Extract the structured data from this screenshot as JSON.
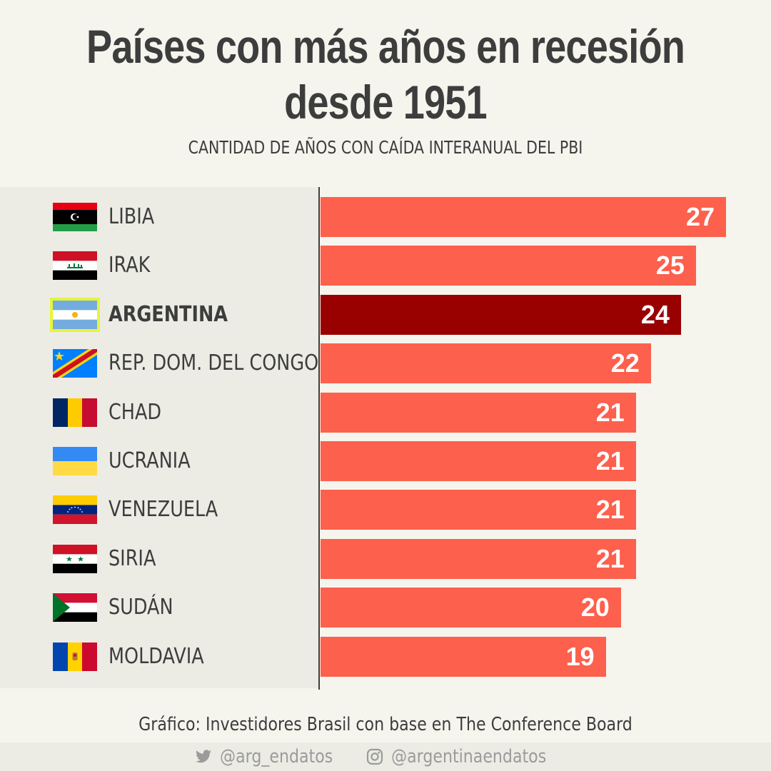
{
  "title_line1": "Países con más años en recesión",
  "title_line2": "desde 1951",
  "subtitle": "CANTIDAD DE AÑOS CON CAÍDA INTERANUAL DEL PBI",
  "source": "Gráfico: Investidores Brasil con base en The Conference Board",
  "footer": {
    "twitter": "@arg_endatos",
    "instagram": "@argentinaendatos"
  },
  "colors": {
    "bar": "#fd604c",
    "highlight_bar": "#990000",
    "highlight_outline": "#e6f53a",
    "text": "#3d3d3d"
  },
  "chart_data": {
    "type": "bar",
    "orientation": "horizontal",
    "title": "Países con más años en recesión desde 1951",
    "subtitle": "CANTIDAD DE AÑOS CON CAÍDA INTERANUAL DEL PBI",
    "categories": [
      "LIBIA",
      "IRAK",
      "ARGENTINA",
      "REP. DOM. DEL CONGO",
      "CHAD",
      "UCRANIA",
      "VENEZUELA",
      "SIRIA",
      "SUDÁN",
      "MOLDAVIA"
    ],
    "values": [
      27,
      25,
      24,
      22,
      21,
      21,
      21,
      21,
      20,
      19
    ],
    "value_labels": [
      "27",
      "25",
      "24",
      "22",
      "21",
      "21",
      "21",
      "21",
      "20",
      "19"
    ],
    "flags": [
      "libya-flag-icon",
      "iraq-flag-icon",
      "argentina-flag-icon",
      "drc-flag-icon",
      "chad-flag-icon",
      "ukraine-flag-icon",
      "venezuela-flag-icon",
      "syria-flag-icon",
      "sudan-flag-icon",
      "moldova-flag-icon"
    ],
    "highlight": "ARGENTINA",
    "xlim": [
      0,
      27
    ],
    "grid": false,
    "legend": "none"
  }
}
